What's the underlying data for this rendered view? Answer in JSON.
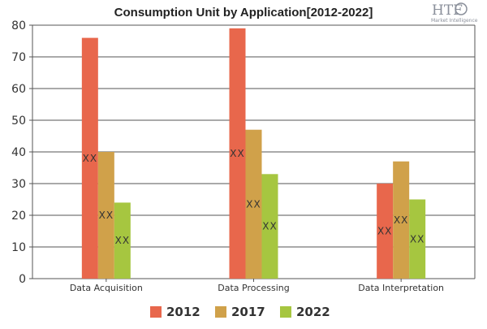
{
  "chart_data": {
    "type": "bar",
    "title": "Consumption Unit by  Application[2012-2022]",
    "categories": [
      "Data Acquisition",
      "Data Processing",
      "Data Interpretation"
    ],
    "series": [
      {
        "name": "2012",
        "values": [
          76,
          79,
          30
        ],
        "color": "#e8674c",
        "labels": [
          "XX",
          "XX",
          "XX"
        ]
      },
      {
        "name": "2017",
        "values": [
          40,
          47,
          37
        ],
        "color": "#d0a14a",
        "labels": [
          "XX",
          "XX",
          "XX"
        ]
      },
      {
        "name": "2022",
        "values": [
          24,
          33,
          25
        ],
        "color": "#a6c640",
        "labels": [
          "XX",
          "XX",
          "XX"
        ]
      }
    ],
    "ylim": [
      0,
      80
    ],
    "yticks": [
      0,
      10,
      20,
      30,
      40,
      50,
      60,
      70,
      80
    ],
    "xlabel": "",
    "ylabel": "",
    "grid": true,
    "legend_position": "bottom"
  },
  "logo": {
    "text": "HTF",
    "subtext": "Market Intelligence"
  }
}
